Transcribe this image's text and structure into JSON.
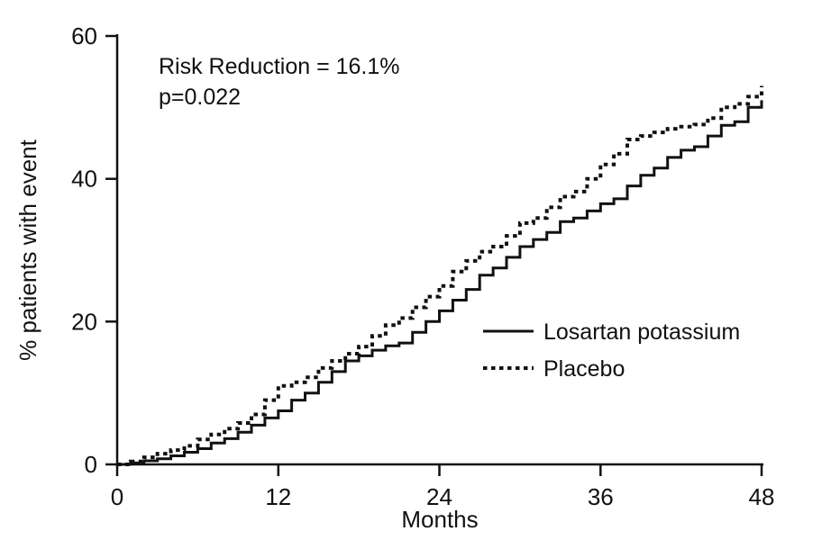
{
  "chart_data": {
    "type": "line",
    "subtype": "kaplan-meier-step",
    "title": "",
    "xlabel": "Months",
    "ylabel": "% patients with event",
    "xlim": [
      0,
      48
    ],
    "ylim": [
      0,
      60
    ],
    "x_ticks": [
      0,
      12,
      24,
      36,
      48
    ],
    "y_ticks": [
      0,
      20,
      40,
      60
    ],
    "grid": false,
    "legend_position": "inside-right-middle",
    "line_interpolation": "step-after",
    "stroke_color": "#111111",
    "annotations": [
      "Risk Reduction = 16.1%",
      "p=0.022"
    ],
    "x": [
      0,
      1,
      2,
      3,
      4,
      5,
      6,
      7,
      8,
      9,
      10,
      11,
      12,
      13,
      14,
      15,
      16,
      17,
      18,
      19,
      20,
      21,
      22,
      23,
      24,
      25,
      26,
      27,
      28,
      29,
      30,
      31,
      32,
      33,
      34,
      35,
      36,
      37,
      38,
      39,
      40,
      41,
      42,
      43,
      44,
      45,
      46,
      47,
      48
    ],
    "series": [
      {
        "name": "Losartan potassium",
        "style": "solid",
        "color": "#111111",
        "values": [
          0,
          0.2,
          0.5,
          0.8,
          1.2,
          1.7,
          2.2,
          3.0,
          3.6,
          4.5,
          5.5,
          6.5,
          7.5,
          9.0,
          10.0,
          11.5,
          13.0,
          14.5,
          15.2,
          16.0,
          16.6,
          17.0,
          18.5,
          20.0,
          21.5,
          23.0,
          24.5,
          26.5,
          27.5,
          29.0,
          30.5,
          31.5,
          32.5,
          34.0,
          34.5,
          35.5,
          36.5,
          37.2,
          39.0,
          40.5,
          41.5,
          43.0,
          44.0,
          44.5,
          46.0,
          47.5,
          48.0,
          50.0,
          51.0
        ]
      },
      {
        "name": "Placebo",
        "style": "dashed",
        "color": "#111111",
        "values": [
          0,
          0.4,
          1.0,
          1.5,
          2.0,
          2.6,
          3.5,
          4.2,
          5.0,
          5.8,
          7.0,
          9.0,
          11.0,
          11.5,
          12.2,
          13.5,
          14.5,
          15.5,
          16.5,
          18.0,
          19.5,
          20.5,
          22.0,
          23.5,
          25.0,
          27.0,
          28.5,
          29.8,
          30.5,
          32.0,
          33.8,
          34.5,
          36.0,
          37.5,
          38.2,
          40.0,
          42.0,
          43.5,
          45.5,
          46.0,
          46.5,
          47.0,
          47.3,
          47.6,
          48.5,
          50.0,
          50.5,
          51.5,
          53.0
        ]
      }
    ]
  }
}
